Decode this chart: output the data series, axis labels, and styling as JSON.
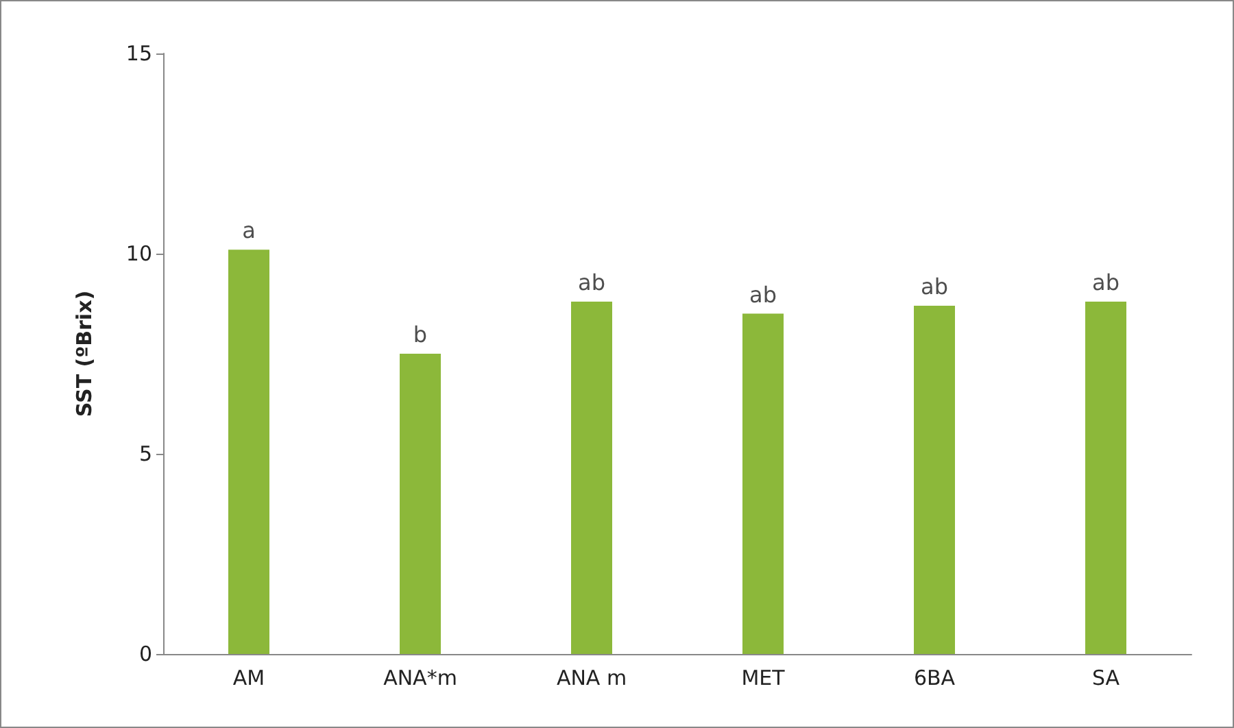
{
  "chart_data": {
    "type": "bar",
    "ylabel": "SST (ºBrix)",
    "categories": [
      "AM",
      "ANA*m",
      "ANA m",
      "MET",
      "6BA",
      "SA"
    ],
    "values": [
      10.1,
      7.5,
      8.8,
      8.5,
      8.7,
      8.8
    ],
    "color": "#8cb83a",
    "ylim": [
      0,
      15
    ],
    "yticks": [
      0,
      5,
      10,
      15
    ],
    "grid": false,
    "annotations": [
      {
        "text": "a",
        "x": "AM",
        "y": 10.1
      },
      {
        "text": "b",
        "x": "ANA*m",
        "y": 7.5
      },
      {
        "text": "ab",
        "x": "ANA m",
        "y": 8.8
      },
      {
        "text": "ab",
        "x": "MET",
        "y": 8.5
      },
      {
        "text": "ab",
        "x": "6BA",
        "y": 8.7
      },
      {
        "text": "ab",
        "x": "SA",
        "y": 8.8
      }
    ]
  }
}
